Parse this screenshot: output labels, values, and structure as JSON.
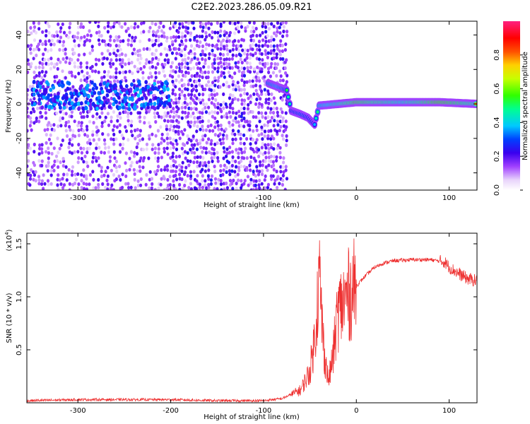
{
  "title": "C2E2.2023.286.05.09.R21",
  "chart_data": [
    {
      "type": "heatmap",
      "xlabel": "Height of straight line (km)",
      "ylabel": "Frequency (Hz)",
      "xlim": [
        -355,
        130
      ],
      "ylim": [
        -50,
        48
      ],
      "x_ticks": [
        -300,
        -200,
        -100,
        0,
        100
      ],
      "y_ticks": [
        -40,
        -20,
        0,
        20,
        40
      ],
      "colorbar": {
        "label": "Normalized spectral amplitude",
        "range": [
          0.0,
          1.0
        ],
        "ticks": [
          0.0,
          0.2,
          0.4,
          0.6,
          0.8
        ],
        "tick_labels": [
          "0.0",
          "0.2",
          "0.4",
          "0.6",
          "0.8"
        ]
      },
      "features": {
        "noise_region_x": [
          -355,
          -75
        ],
        "strong_band_left": {
          "x": [
            -350,
            -200
          ],
          "freq_center": 5,
          "amplitude": 0.35
        },
        "signal_track": [
          {
            "x": -95,
            "freq": 12,
            "amp": 0.55
          },
          {
            "x": -85,
            "freq": 10,
            "amp": 0.6
          },
          {
            "x": -75,
            "freq": 8,
            "amp": 0.5
          },
          {
            "x": -70,
            "freq": -4,
            "amp": 0.45
          },
          {
            "x": -60,
            "freq": -6,
            "amp": 0.5
          },
          {
            "x": -52,
            "freq": -8,
            "amp": 0.45
          },
          {
            "x": -45,
            "freq": -12,
            "amp": 0.4
          },
          {
            "x": -40,
            "freq": -1,
            "amp": 0.6
          },
          {
            "x": -20,
            "freq": 0,
            "amp": 0.7
          },
          {
            "x": 0,
            "freq": 1,
            "amp": 0.85
          },
          {
            "x": 50,
            "freq": 1,
            "amp": 0.7
          },
          {
            "x": 90,
            "freq": 1,
            "amp": 0.9
          },
          {
            "x": 130,
            "freq": 0,
            "amp": 0.75
          }
        ]
      }
    },
    {
      "type": "line",
      "xlabel": "Height of straight line (km)",
      "ylabel": "SNR (10 * v/v)",
      "scale_label": "(x10",
      "scale_exp": "4",
      "xlim": [
        -355,
        130
      ],
      "ylim": [
        0,
        1.6
      ],
      "x_ticks": [
        -300,
        -200,
        -100,
        0,
        100
      ],
      "y_ticks": [
        0.5,
        1.0,
        1.5
      ],
      "y_tick_labels": [
        "0.5",
        "1.0",
        "1.5"
      ],
      "series": [
        {
          "color": "#ee3030",
          "x": [
            -355,
            -300,
            -250,
            -200,
            -150,
            -100,
            -80,
            -60,
            -50,
            -45,
            -40,
            -35,
            -30,
            -25,
            -20,
            -10,
            0,
            10,
            20,
            30,
            40,
            60,
            80,
            95,
            100,
            110,
            120,
            130
          ],
          "y": [
            0.02,
            0.03,
            0.03,
            0.03,
            0.02,
            0.02,
            0.04,
            0.12,
            0.3,
            0.6,
            1.2,
            0.5,
            0.2,
            0.45,
            0.85,
            1.0,
            1.1,
            1.2,
            1.28,
            1.32,
            1.34,
            1.35,
            1.35,
            1.33,
            1.28,
            1.22,
            1.17,
            1.15
          ]
        }
      ]
    }
  ]
}
